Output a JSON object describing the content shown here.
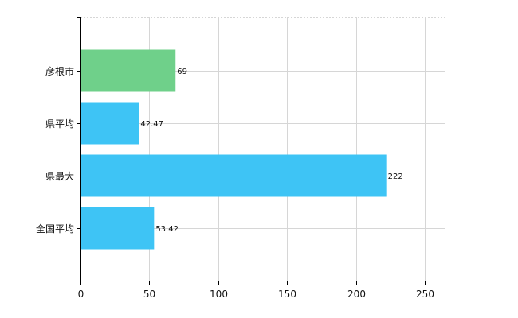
{
  "chart_data": {
    "type": "bar",
    "orientation": "horizontal",
    "categories": [
      "彦根市",
      "県平均",
      "県最大",
      "全国平均"
    ],
    "values": [
      69,
      42.47,
      222,
      53.42
    ],
    "value_labels": [
      "69",
      "42.47",
      "222",
      "53.42"
    ],
    "bar_colors": [
      "#6fd08a",
      "#3ec4f5",
      "#3ec4f5",
      "#3ec4f5"
    ],
    "xlim": [
      0,
      265
    ],
    "x_ticks": [
      0,
      50,
      100,
      150,
      200,
      250
    ],
    "grid": true,
    "legend": "none",
    "title": "",
    "xlabel": "",
    "ylabel": ""
  }
}
